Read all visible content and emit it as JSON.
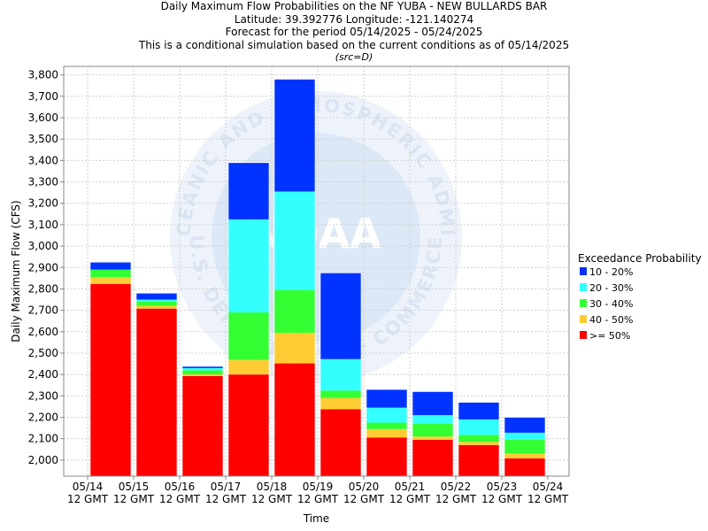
{
  "chart_data": {
    "type": "bar",
    "stacked": true,
    "title": "Daily Maximum Flow Probabilities on the NF YUBA - NEW BULLARDS BAR",
    "subtitles": [
      "Latitude: 39.392776 Longitude: -121.140274",
      "Forecast for the period 05/14/2025 - 05/24/2025",
      "This is a conditional simulation based on the current conditions as of 05/14/2025"
    ],
    "source_note": "(src=D)",
    "xlabel": "Time",
    "ylabel": "Daily Maximum Flow (CFS)",
    "ylim": [
      1925,
      3840
    ],
    "yticks": [
      2000,
      2100,
      2200,
      2300,
      2400,
      2500,
      2600,
      2700,
      2800,
      2900,
      3000,
      3100,
      3200,
      3300,
      3400,
      3500,
      3600,
      3700,
      3800
    ],
    "ytick_labels": [
      "2,000",
      "2,100",
      "2,200",
      "2,300",
      "2,400",
      "2,500",
      "2,600",
      "2,700",
      "2,800",
      "2,900",
      "3,000",
      "3,100",
      "3,200",
      "3,300",
      "3,400",
      "3,500",
      "3,600",
      "3,700",
      "3,800"
    ],
    "xticks": [
      {
        "date": "05/14",
        "time": "12 GMT"
      },
      {
        "date": "05/15",
        "time": "12 GMT"
      },
      {
        "date": "05/16",
        "time": "12 GMT"
      },
      {
        "date": "05/17",
        "time": "12 GMT"
      },
      {
        "date": "05/18",
        "time": "12 GMT"
      },
      {
        "date": "05/19",
        "time": "12 GMT"
      },
      {
        "date": "05/20",
        "time": "12 GMT"
      },
      {
        "date": "05/21",
        "time": "12 GMT"
      },
      {
        "date": "05/22",
        "time": "12 GMT"
      },
      {
        "date": "05/23",
        "time": "12 GMT"
      },
      {
        "date": "05/24",
        "time": "12 GMT"
      }
    ],
    "legend": {
      "title": "Exceedance Probability",
      "placement": "right",
      "entries": [
        {
          "label": "10 - 20%",
          "color": "#0033ff"
        },
        {
          "label": "20 - 30%",
          "color": "#33ffff"
        },
        {
          "label": "30 - 40%",
          "color": "#33ff33"
        },
        {
          "label": "40 - 50%",
          "color": "#ffcc33"
        },
        {
          "label": ">= 50%",
          "color": "#ff0000"
        }
      ]
    },
    "grid": true,
    "bars": [
      {
        "day": "05/14",
        "levels": [
          2823,
          2855,
          2890,
          2890,
          2925
        ]
      },
      {
        "day": "05/15",
        "levels": [
          2708,
          2720,
          2740,
          2750,
          2780
        ]
      },
      {
        "day": "05/16",
        "levels": [
          2393,
          2400,
          2420,
          2430,
          2438
        ]
      },
      {
        "day": "05/17",
        "levels": [
          2400,
          2468,
          2690,
          3125,
          3390
        ]
      },
      {
        "day": "05/18",
        "levels": [
          2452,
          2595,
          2795,
          3255,
          3780
        ]
      },
      {
        "day": "05/19",
        "levels": [
          2238,
          2290,
          2325,
          2472,
          2875
        ]
      },
      {
        "day": "05/20",
        "levels": [
          2105,
          2145,
          2175,
          2245,
          2330
        ]
      },
      {
        "day": "05/21",
        "levels": [
          2095,
          2110,
          2170,
          2210,
          2320
        ]
      },
      {
        "day": "05/22",
        "levels": [
          2070,
          2085,
          2118,
          2190,
          2270
        ]
      },
      {
        "day": "05/23",
        "levels": [
          2008,
          2030,
          2095,
          2128,
          2200
        ]
      }
    ],
    "level_order_note": "levels are cumulative tops: >= 50%, 40 - 50%, 30 - 40%, 20 - 30%, 10 - 20%",
    "watermark": {
      "text_top": "NATIONAL OCEANIC AND ATMOSPHERIC ADMINISTRATION",
      "text_bottom": "U.S. DEPARTMENT OF COMMERCE",
      "center": "NOAA"
    }
  }
}
